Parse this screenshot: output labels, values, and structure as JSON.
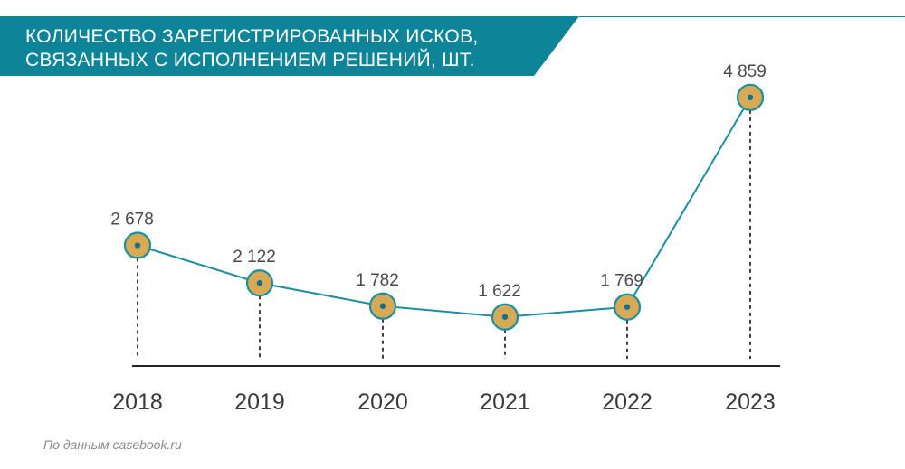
{
  "header": {
    "title_line1": "КОЛИЧЕСТВО ЗАРЕГИСТРИРОВАННЫХ ИСКОВ,",
    "title_line2": "СВЯЗАННЫХ С ИСПОЛНЕНИЕМ РЕШЕНИЙ, ШТ."
  },
  "source": "По данным casebook.ru",
  "colors": {
    "banner": "#0e8499",
    "line": "#1a8fa3",
    "marker_fill": "#d9aa55",
    "marker_stroke": "#1a8fa3",
    "axis": "#222222"
  },
  "chart_data": {
    "type": "line",
    "title": "КОЛИЧЕСТВО ЗАРЕГИСТРИРОВАННЫХ ИСКОВ, СВЯЗАННЫХ С ИСПОЛНЕНИЕМ РЕШЕНИЙ, ШТ.",
    "categories": [
      "2018",
      "2019",
      "2020",
      "2021",
      "2022",
      "2023"
    ],
    "values": [
      2678,
      2122,
      1782,
      1622,
      1769,
      4859
    ],
    "value_labels": [
      "2 678",
      "2 122",
      "1 782",
      "1 622",
      "1 769",
      "4 859"
    ],
    "xlabel": "",
    "ylabel": "",
    "grid": false,
    "legend": "none"
  }
}
